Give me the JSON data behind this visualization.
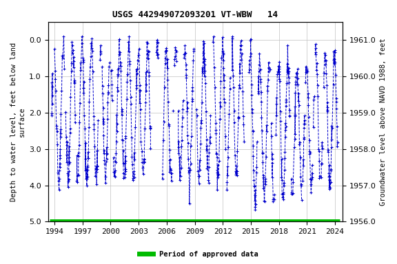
{
  "title": "USGS 442949072093201 VT-WBW   14",
  "xlabel_ticks": [
    1994,
    1997,
    2000,
    2003,
    2006,
    2009,
    2012,
    2015,
    2018,
    2021,
    2024
  ],
  "xlim": [
    1993.3,
    2024.8
  ],
  "ylim_left": [
    5.0,
    -0.5
  ],
  "ylim_right": [
    1956.0,
    1961.5
  ],
  "yticks_left": [
    0.0,
    1.0,
    2.0,
    3.0,
    4.0,
    5.0
  ],
  "yticks_right": [
    1961.0,
    1960.0,
    1959.0,
    1958.0,
    1957.0,
    1956.0
  ],
  "ylabel_left": "Depth to water level, feet below land\nsurface",
  "ylabel_right": "Groundwater level above NAVD 1988, feet",
  "line_color": "#0000cc",
  "green_color": "#00bb00",
  "approved_label": "Period of approved data",
  "approved_start": 1993.5,
  "approved_end": 2024.5,
  "title_fontsize": 9,
  "label_fontsize": 7.5,
  "tick_fontsize": 8
}
